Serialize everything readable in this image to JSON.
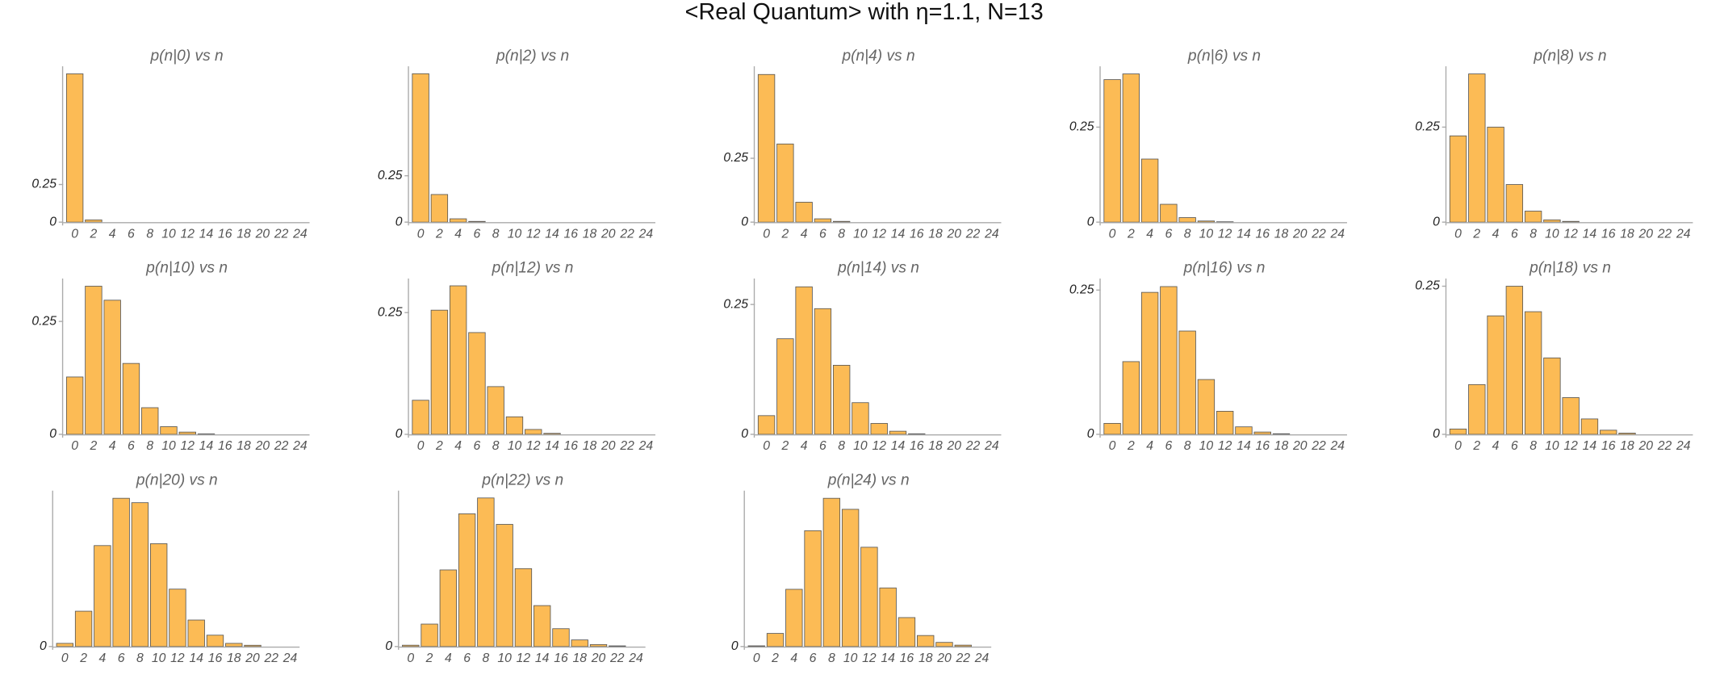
{
  "title": "<Real Quantum> with η=1.1, N=13",
  "chart_data": [
    {
      "type": "bar",
      "title": "p(n|0) vs n",
      "categories": [
        0,
        2,
        4,
        6,
        8,
        10,
        12,
        14,
        16,
        18,
        20,
        22,
        24
      ],
      "values": [
        0.985,
        0.015,
        0,
        0,
        0,
        0,
        0,
        0,
        0,
        0,
        0,
        0,
        0
      ],
      "color": "#fcbb55",
      "ylim": [
        0,
        1.035
      ],
      "yticks": [
        0,
        0.25
      ]
    },
    {
      "type": "bar",
      "title": "p(n|2) vs n",
      "categories": [
        0,
        2,
        4,
        6,
        8,
        10,
        12,
        14,
        16,
        18,
        20,
        22,
        24
      ],
      "values": [
        0.8,
        0.149,
        0.018,
        0.004,
        0,
        0,
        0,
        0,
        0,
        0,
        0,
        0,
        0
      ],
      "color": "#fcbb55",
      "ylim": [
        0,
        0.84
      ],
      "yticks": [
        0,
        0.25
      ]
    },
    {
      "type": "bar",
      "title": "p(n|4) vs n",
      "categories": [
        0,
        2,
        4,
        6,
        8,
        10,
        12,
        14,
        16,
        18,
        20,
        22,
        24
      ],
      "values": [
        0.578,
        0.306,
        0.078,
        0.013,
        0.003,
        0,
        0,
        0,
        0,
        0,
        0,
        0,
        0
      ],
      "color": "#fcbb55",
      "ylim": [
        0,
        0.61
      ],
      "yticks": [
        0,
        0.25
      ]
    },
    {
      "type": "bar",
      "title": "p(n|6) vs n",
      "categories": [
        0,
        2,
        4,
        6,
        8,
        10,
        12,
        14,
        16,
        18,
        20,
        22,
        24
      ],
      "values": [
        0.375,
        0.39,
        0.166,
        0.047,
        0.012,
        0.003,
        0.001,
        0,
        0,
        0,
        0,
        0,
        0
      ],
      "color": "#fcbb55",
      "ylim": [
        0,
        0.41
      ],
      "yticks": [
        0,
        0.25
      ]
    },
    {
      "type": "bar",
      "title": "p(n|8) vs n",
      "categories": [
        0,
        2,
        4,
        6,
        8,
        10,
        12,
        14,
        16,
        18,
        20,
        22,
        24
      ],
      "values": [
        0.227,
        0.39,
        0.25,
        0.099,
        0.029,
        0.006,
        0.002,
        0,
        0,
        0,
        0,
        0,
        0
      ],
      "color": "#fcbb55",
      "ylim": [
        0,
        0.41
      ],
      "yticks": [
        0,
        0.25
      ]
    },
    {
      "type": "bar",
      "title": "p(n|10) vs n",
      "categories": [
        0,
        2,
        4,
        6,
        8,
        10,
        12,
        14,
        16,
        18,
        20,
        22,
        24
      ],
      "values": [
        0.127,
        0.328,
        0.297,
        0.157,
        0.059,
        0.017,
        0.005,
        0.001,
        0,
        0,
        0,
        0,
        0
      ],
      "color": "#fcbb55",
      "ylim": [
        0,
        0.345
      ],
      "yticks": [
        0,
        0.25
      ]
    },
    {
      "type": "bar",
      "title": "p(n|12) vs n",
      "categories": [
        0,
        2,
        4,
        6,
        8,
        10,
        12,
        14,
        16,
        18,
        20,
        22,
        24
      ],
      "values": [
        0.07,
        0.255,
        0.305,
        0.209,
        0.098,
        0.036,
        0.01,
        0.002,
        0,
        0,
        0,
        0,
        0
      ],
      "color": "#fcbb55",
      "ylim": [
        0,
        0.32
      ],
      "yticks": [
        0,
        0.25
      ]
    },
    {
      "type": "bar",
      "title": "p(n|14) vs n",
      "categories": [
        0,
        2,
        4,
        6,
        8,
        10,
        12,
        14,
        16,
        18,
        20,
        22,
        24
      ],
      "values": [
        0.036,
        0.184,
        0.284,
        0.242,
        0.133,
        0.061,
        0.021,
        0.006,
        0.001,
        0,
        0,
        0,
        0
      ],
      "color": "#fcbb55",
      "ylim": [
        0,
        0.3
      ],
      "yticks": [
        0,
        0.25
      ]
    },
    {
      "type": "bar",
      "title": "p(n|16) vs n",
      "categories": [
        0,
        2,
        4,
        6,
        8,
        10,
        12,
        14,
        16,
        18,
        20,
        22,
        24
      ],
      "values": [
        0.019,
        0.126,
        0.246,
        0.256,
        0.179,
        0.095,
        0.04,
        0.013,
        0.004,
        0.001,
        0,
        0,
        0
      ],
      "color": "#fcbb55",
      "ylim": [
        0,
        0.27
      ],
      "yticks": [
        0,
        0.25
      ]
    },
    {
      "type": "bar",
      "title": "p(n|18) vs n",
      "categories": [
        0,
        2,
        4,
        6,
        8,
        10,
        12,
        14,
        16,
        18,
        20,
        22,
        24
      ],
      "values": [
        0.009,
        0.084,
        0.2,
        0.25,
        0.207,
        0.129,
        0.062,
        0.026,
        0.007,
        0.002,
        0,
        0,
        0
      ],
      "color": "#fcbb55",
      "ylim": [
        0,
        0.263
      ],
      "yticks": [
        0,
        0.25
      ]
    },
    {
      "type": "bar",
      "title": "p(n|20) vs n",
      "categories": [
        0,
        2,
        4,
        6,
        8,
        10,
        12,
        14,
        16,
        18,
        20,
        22,
        24
      ],
      "values": [
        0.005,
        0.056,
        0.16,
        0.235,
        0.228,
        0.163,
        0.091,
        0.042,
        0.018,
        0.005,
        0.002,
        0,
        0
      ],
      "color": "#fcbb55",
      "ylim": [
        0,
        0.247
      ],
      "yticks": [
        0
      ]
    },
    {
      "type": "bar",
      "title": "p(n|22) vs n",
      "categories": [
        0,
        2,
        4,
        6,
        8,
        10,
        12,
        14,
        16,
        18,
        20,
        22,
        24
      ],
      "values": [
        0.002,
        0.034,
        0.116,
        0.201,
        0.225,
        0.185,
        0.118,
        0.062,
        0.027,
        0.01,
        0.003,
        0.001,
        0
      ],
      "color": "#fcbb55",
      "ylim": [
        0,
        0.236
      ],
      "yticks": [
        0
      ]
    },
    {
      "type": "bar",
      "title": "p(n|24) vs n",
      "categories": [
        0,
        2,
        4,
        6,
        8,
        10,
        12,
        14,
        16,
        18,
        20,
        22,
        24
      ],
      "values": [
        0.001,
        0.019,
        0.083,
        0.168,
        0.215,
        0.199,
        0.144,
        0.085,
        0.042,
        0.016,
        0.006,
        0.002,
        0
      ],
      "color": "#fcbb55",
      "ylim": [
        0,
        0.226
      ],
      "yticks": [
        0
      ]
    }
  ]
}
